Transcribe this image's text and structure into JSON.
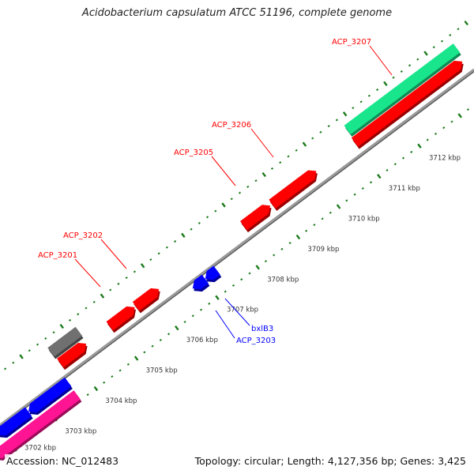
{
  "title": "Acidobacterium capsulatum ATCC 51196, complete genome",
  "footer": {
    "accession": "Accession: NC_012483",
    "topology": "Topology: circular; Length: 4,127,356 bp; Genes: 3,425"
  },
  "colors": {
    "backbone": "#8a8a8a",
    "ticks": "#1a7a1a",
    "cds": "#ff0000",
    "reverse": "#0000ff",
    "rna": "#ff1493",
    "other": "#707070",
    "highlight": "#19e68c",
    "label_red": "#ff0000",
    "label_blue": "#0000ff"
  },
  "ticks": {
    "major_labels": [
      "3702 kbp",
      "3703 kbp",
      "3704 kbp",
      "3705 kbp",
      "3706 kbp",
      "3707 kbp",
      "3708 kbp",
      "3709 kbp",
      "3710 kbp",
      "3711 kbp",
      "3712 kbp"
    ]
  },
  "features": [
    {
      "name": "pink-feature",
      "start": 3701.57,
      "end": 3703.63,
      "track": "rev2",
      "color": "#ff1493",
      "dir": -1
    },
    {
      "name": "blue-feature-a",
      "start": 3701.9,
      "end": 3702.66,
      "track": "rev1",
      "color": "#0000ff",
      "dir": -1
    },
    {
      "name": "blue-feature-b",
      "start": 3702.66,
      "end": 3703.64,
      "track": "rev1",
      "color": "#0000ff",
      "dir": -1
    },
    {
      "name": "gray-feature",
      "start": 3703.72,
      "end": 3704.41,
      "track": "fwd2",
      "color": "#707070",
      "dir": 0
    },
    {
      "name": "red-feature-small",
      "start": 3703.74,
      "end": 3704.38,
      "track": "fwd1",
      "color": "#ff0000",
      "dir": 1
    },
    {
      "name": "ACP_3201",
      "start": 3704.96,
      "end": 3705.58,
      "track": "fwd1",
      "color": "#ff0000",
      "dir": 1
    },
    {
      "name": "ACP_3202",
      "start": 3705.61,
      "end": 3706.18,
      "track": "fwd1",
      "color": "#ff0000",
      "dir": 1
    },
    {
      "name": "ACP_3203",
      "start": 3706.72,
      "end": 3707.03,
      "track": "rev1",
      "color": "#0000ff",
      "dir": -1
    },
    {
      "name": "bxlB3",
      "start": 3707.03,
      "end": 3707.32,
      "track": "rev1",
      "color": "#0000ff",
      "dir": -1
    },
    {
      "name": "ACP_3205",
      "start": 3708.27,
      "end": 3708.93,
      "track": "fwd1",
      "color": "#ff0000",
      "dir": 1
    },
    {
      "name": "ACP_3206",
      "start": 3708.98,
      "end": 3710.07,
      "track": "fwd1",
      "color": "#ff0000",
      "dir": 1
    },
    {
      "name": "red-feature-large",
      "start": 3711.02,
      "end": 3713.68,
      "track": "fwd1",
      "color": "#ff0000",
      "dir": 1
    },
    {
      "name": "ACP_3207",
      "start": 3711.05,
      "end": 3713.75,
      "track": "fwd2",
      "color": "#19e68c",
      "dir": 0
    }
  ],
  "labels": [
    {
      "text": "ACP_3207",
      "color": "#ff0000"
    },
    {
      "text": "ACP_3206",
      "color": "#ff0000"
    },
    {
      "text": "ACP_3205",
      "color": "#ff0000"
    },
    {
      "text": "ACP_3202",
      "color": "#ff0000"
    },
    {
      "text": "ACP_3201",
      "color": "#ff0000"
    },
    {
      "text": "bxlB3",
      "color": "#0000ff"
    },
    {
      "text": "ACP_3203",
      "color": "#0000ff"
    }
  ]
}
